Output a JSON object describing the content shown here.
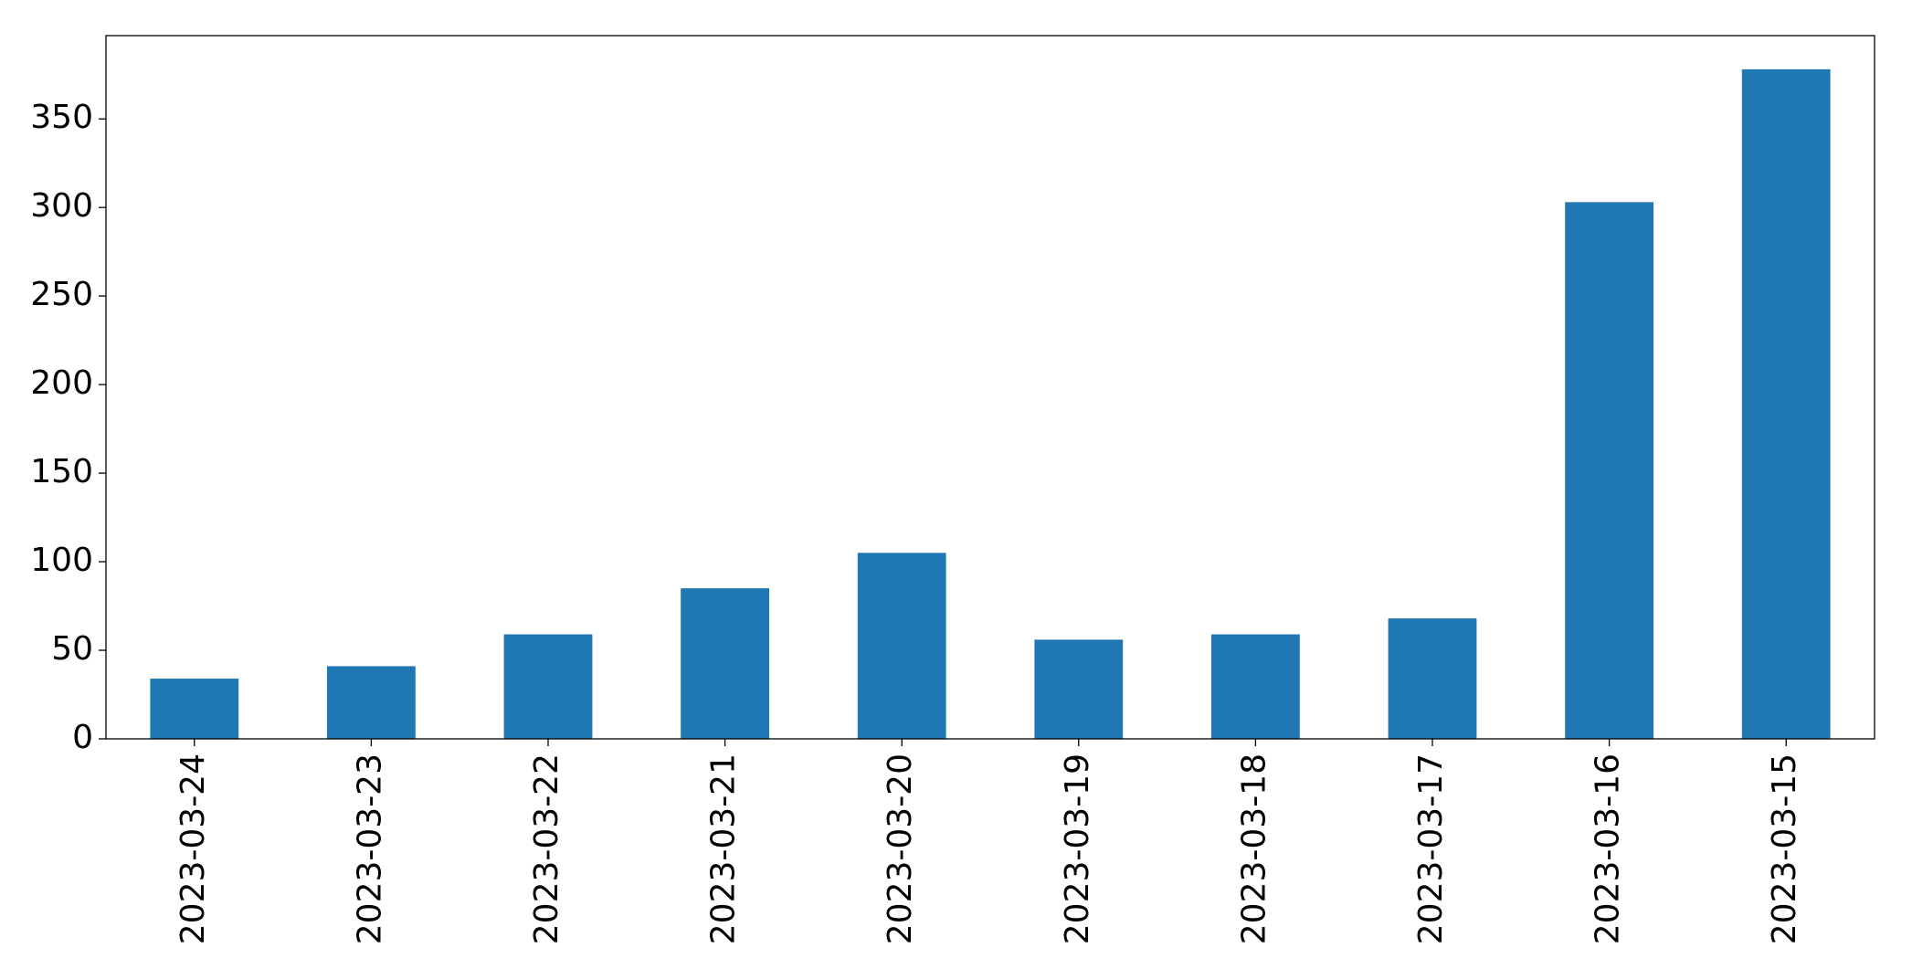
{
  "chart_data": {
    "type": "bar",
    "categories": [
      "2023-03-24",
      "2023-03-23",
      "2023-03-22",
      "2023-03-21",
      "2023-03-20",
      "2023-03-19",
      "2023-03-18",
      "2023-03-17",
      "2023-03-16",
      "2023-03-15"
    ],
    "values": [
      34,
      41,
      59,
      85,
      105,
      56,
      59,
      68,
      303,
      378
    ],
    "color": "#1f77b4",
    "ylim": [
      0,
      397
    ],
    "yticks": [
      0,
      50,
      100,
      150,
      200,
      250,
      300,
      350
    ],
    "grid": false
  }
}
